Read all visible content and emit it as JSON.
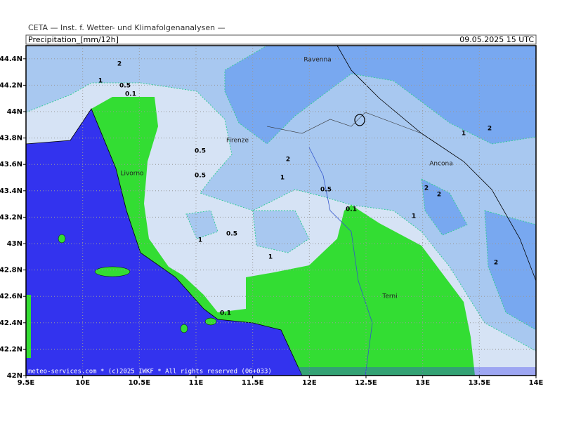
{
  "header": {
    "institute": "CETA — Inst. f. Wetter- und Klimafolgenanalysen —",
    "product": "Precipitation_[mm/12h]",
    "valid_time": "09.05.2025 15 UTC"
  },
  "map": {
    "lon_range": [
      9.5,
      14
    ],
    "lat_range": [
      42,
      44.5
    ],
    "lon_ticks": [
      {
        "value": 9.5,
        "label": "9.5E"
      },
      {
        "value": 10,
        "label": "10E"
      },
      {
        "value": 10.5,
        "label": "10.5E"
      },
      {
        "value": 11,
        "label": "11E"
      },
      {
        "value": 11.5,
        "label": "11.5E"
      },
      {
        "value": 12,
        "label": "12E"
      },
      {
        "value": 12.5,
        "label": "12.5E"
      },
      {
        "value": 13,
        "label": "13E"
      },
      {
        "value": 13.5,
        "label": "13.5E"
      },
      {
        "value": 14,
        "label": "14E"
      }
    ],
    "lat_ticks": [
      {
        "value": 42,
        "label": "42N"
      },
      {
        "value": 42.2,
        "label": "42.2N"
      },
      {
        "value": 42.4,
        "label": "42.4N"
      },
      {
        "value": 42.6,
        "label": "42.6N"
      },
      {
        "value": 42.8,
        "label": "42.8N"
      },
      {
        "value": 43,
        "label": "43N"
      },
      {
        "value": 43.2,
        "label": "43.2N"
      },
      {
        "value": 43.4,
        "label": "43.4N"
      },
      {
        "value": 43.6,
        "label": "43.6N"
      },
      {
        "value": 43.8,
        "label": "43.8N"
      },
      {
        "value": 44,
        "label": "44N"
      },
      {
        "value": 44.2,
        "label": "44.2N"
      },
      {
        "value": 44.4,
        "label": "44.4N"
      }
    ],
    "cities": [
      "Ravenna",
      "Firenze",
      "Livorno",
      "Ancona",
      "Terni"
    ],
    "contour_labels": [
      "2",
      "1",
      "0.5",
      "0.1",
      "0.5",
      "0.5",
      "1",
      "0.5",
      "1",
      "2",
      "1",
      "0.5",
      "0.1",
      "1",
      "2",
      "2",
      "2",
      "1",
      "2",
      "0.1"
    ],
    "footer": "meteo-services.com * (c)2025 IWKF * All rights reserved (06+033)"
  }
}
